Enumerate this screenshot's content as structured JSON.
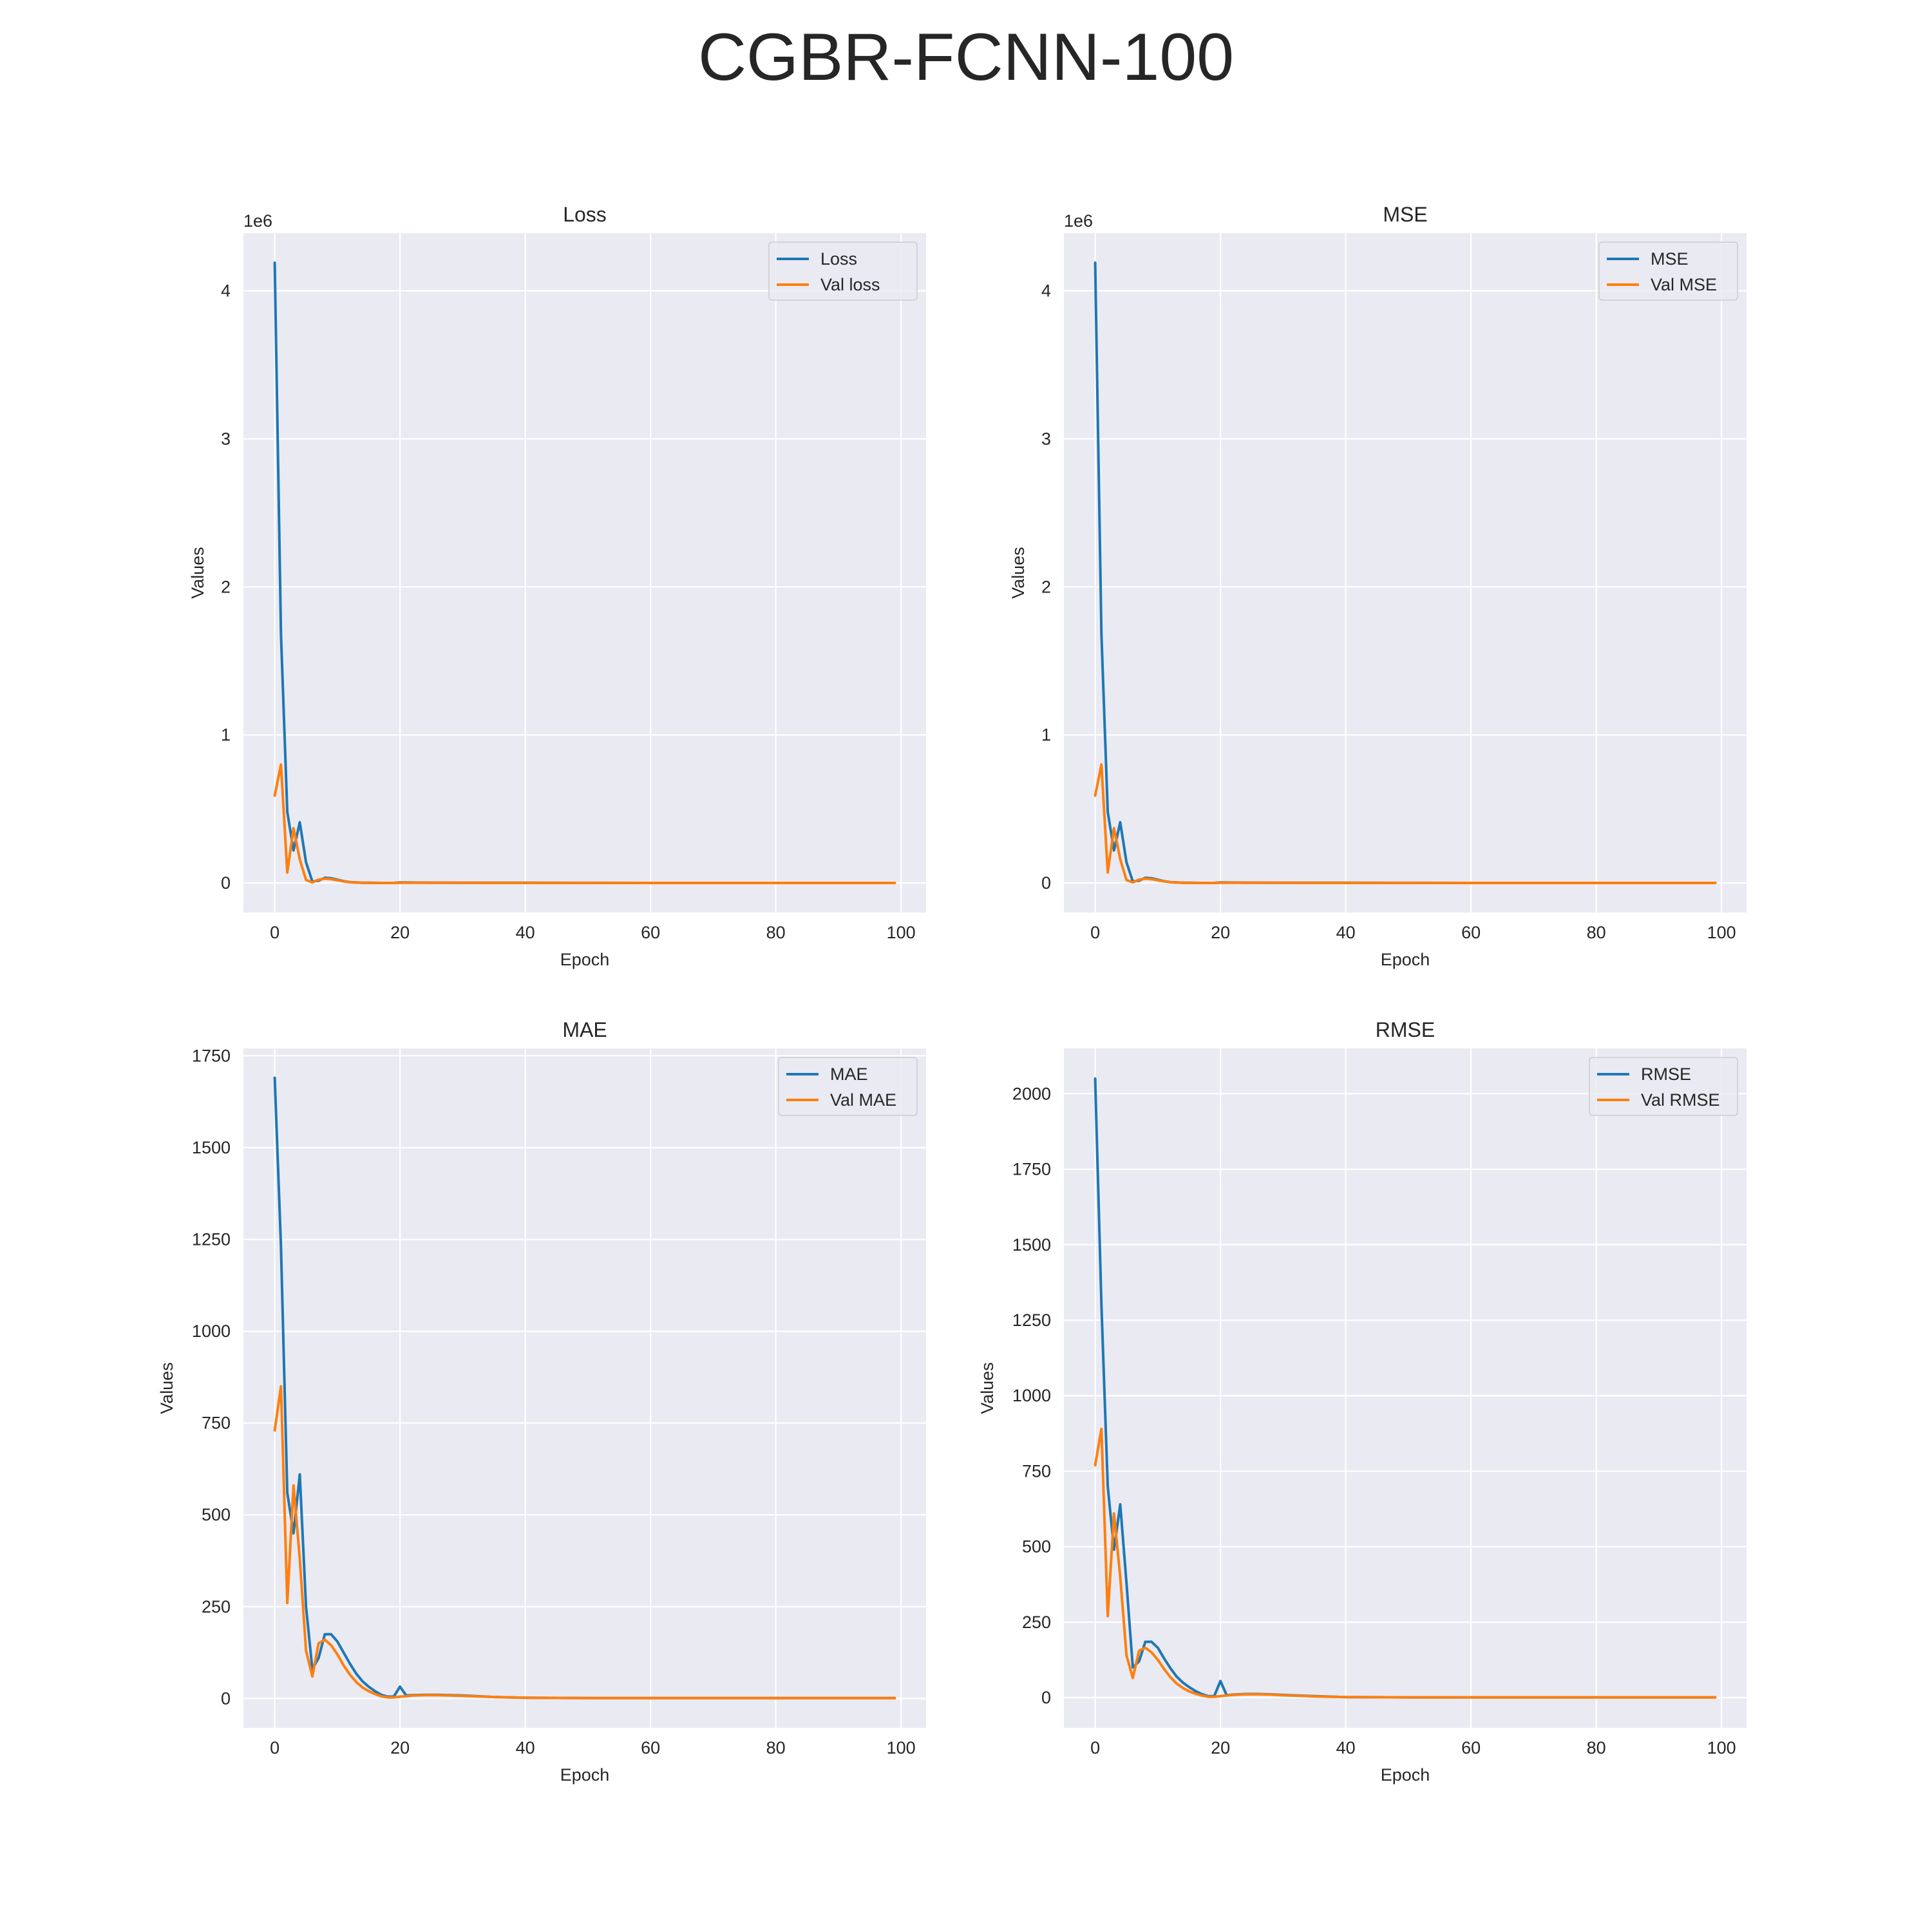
{
  "title": "CGBR-FCNN-100",
  "colors": {
    "train": "#1f77b4",
    "val": "#ff7f0e",
    "background": "#eaeaf2",
    "grid": "#ffffff"
  },
  "chart_data": [
    {
      "type": "line",
      "title": "Loss",
      "xlabel": "Epoch",
      "ylabel": "Values",
      "y_offset_label": "1e6",
      "xlim": [
        -5,
        104
      ],
      "ylim": [
        -200000,
        4390000
      ],
      "xticks": [
        0,
        20,
        40,
        60,
        80,
        100
      ],
      "xtick_labels": [
        "0",
        "20",
        "40",
        "60",
        "80",
        "100"
      ],
      "yticks": [
        0,
        1000000,
        2000000,
        3000000,
        4000000
      ],
      "ytick_labels": [
        "0",
        "1",
        "2",
        "3",
        "4"
      ],
      "legend_position": "top-right",
      "series": [
        {
          "name": "Loss",
          "color": "#1f77b4",
          "x": [
            0,
            1,
            2,
            3,
            4,
            5,
            6,
            7,
            8,
            9,
            10,
            11,
            12,
            13,
            14,
            15,
            16,
            17,
            18,
            19,
            20,
            25,
            30,
            40,
            50,
            60,
            70,
            80,
            90,
            99
          ],
          "y": [
            4190000,
            1680000,
            480000,
            220000,
            410000,
            140000,
            10000,
            15000,
            35000,
            32000,
            22000,
            12000,
            6000,
            3000,
            1500,
            800,
            500,
            300,
            300,
            300,
            3000,
            2000,
            1500,
            800,
            400,
            300,
            200,
            200,
            200,
            200
          ]
        },
        {
          "name": "Val loss",
          "color": "#ff7f0e",
          "x": [
            0,
            1,
            2,
            3,
            4,
            5,
            6,
            7,
            8,
            9,
            10,
            11,
            12,
            13,
            14,
            15,
            16,
            17,
            18,
            19,
            20,
            25,
            30,
            40,
            50,
            60,
            70,
            80,
            90,
            99
          ],
          "y": [
            590000,
            800000,
            70000,
            370000,
            160000,
            20000,
            4000,
            22000,
            29000,
            26000,
            18000,
            10000,
            5000,
            2500,
            1200,
            600,
            400,
            200,
            200,
            200,
            1000,
            1500,
            1200,
            600,
            300,
            200,
            200,
            200,
            200,
            200
          ]
        }
      ]
    },
    {
      "type": "line",
      "title": "MSE",
      "xlabel": "Epoch",
      "ylabel": "Values",
      "y_offset_label": "1e6",
      "xlim": [
        -5,
        104
      ],
      "ylim": [
        -200000,
        4390000
      ],
      "xticks": [
        0,
        20,
        40,
        60,
        80,
        100
      ],
      "xtick_labels": [
        "0",
        "20",
        "40",
        "60",
        "80",
        "100"
      ],
      "yticks": [
        0,
        1000000,
        2000000,
        3000000,
        4000000
      ],
      "ytick_labels": [
        "0",
        "1",
        "2",
        "3",
        "4"
      ],
      "legend_position": "top-right",
      "series": [
        {
          "name": "MSE",
          "color": "#1f77b4",
          "x": [
            0,
            1,
            2,
            3,
            4,
            5,
            6,
            7,
            8,
            9,
            10,
            11,
            12,
            13,
            14,
            15,
            16,
            17,
            18,
            19,
            20,
            25,
            30,
            40,
            50,
            60,
            70,
            80,
            90,
            99
          ],
          "y": [
            4190000,
            1680000,
            480000,
            220000,
            410000,
            140000,
            10000,
            15000,
            35000,
            32000,
            22000,
            12000,
            6000,
            3000,
            1500,
            800,
            500,
            300,
            300,
            300,
            3000,
            2000,
            1500,
            800,
            400,
            300,
            200,
            200,
            200,
            200
          ]
        },
        {
          "name": "Val MSE",
          "color": "#ff7f0e",
          "x": [
            0,
            1,
            2,
            3,
            4,
            5,
            6,
            7,
            8,
            9,
            10,
            11,
            12,
            13,
            14,
            15,
            16,
            17,
            18,
            19,
            20,
            25,
            30,
            40,
            50,
            60,
            70,
            80,
            90,
            99
          ],
          "y": [
            590000,
            800000,
            70000,
            370000,
            160000,
            20000,
            4000,
            22000,
            29000,
            26000,
            18000,
            10000,
            5000,
            2500,
            1200,
            600,
            400,
            200,
            200,
            200,
            1000,
            1500,
            1200,
            600,
            300,
            200,
            200,
            200,
            200,
            200
          ]
        }
      ]
    },
    {
      "type": "line",
      "title": "MAE",
      "xlabel": "Epoch",
      "ylabel": "Values",
      "xlim": [
        -5,
        104
      ],
      "ylim": [
        -80,
        1770
      ],
      "xticks": [
        0,
        20,
        40,
        60,
        80,
        100
      ],
      "xtick_labels": [
        "0",
        "20",
        "40",
        "60",
        "80",
        "100"
      ],
      "yticks": [
        0,
        250,
        500,
        750,
        1000,
        1250,
        1500,
        1750
      ],
      "ytick_labels": [
        "0",
        "250",
        "500",
        "750",
        "1000",
        "1250",
        "1500",
        "1750"
      ],
      "legend_position": "top-right",
      "series": [
        {
          "name": "MAE",
          "color": "#1f77b4",
          "x": [
            0,
            1,
            2,
            3,
            4,
            5,
            6,
            7,
            8,
            9,
            10,
            11,
            12,
            13,
            14,
            15,
            16,
            17,
            18,
            19,
            20,
            21,
            22,
            24,
            26,
            28,
            30,
            35,
            40,
            50,
            60,
            70,
            80,
            90,
            99
          ],
          "y": [
            1690,
            1230,
            560,
            450,
            610,
            250,
            80,
            110,
            175,
            175,
            155,
            125,
            95,
            68,
            47,
            32,
            20,
            10,
            5,
            5,
            32,
            8,
            9,
            10,
            10,
            9,
            8,
            4,
            2,
            1,
            1,
            1,
            1,
            1,
            1
          ]
        },
        {
          "name": "Val MAE",
          "color": "#ff7f0e",
          "x": [
            0,
            1,
            2,
            3,
            4,
            5,
            6,
            7,
            8,
            9,
            10,
            11,
            12,
            13,
            14,
            15,
            16,
            17,
            18,
            19,
            20,
            21,
            22,
            24,
            26,
            28,
            30,
            35,
            40,
            50,
            60,
            70,
            80,
            90,
            99
          ],
          "y": [
            730,
            850,
            260,
            580,
            380,
            130,
            60,
            150,
            160,
            145,
            120,
            90,
            65,
            45,
            30,
            20,
            12,
            6,
            3,
            3,
            5,
            6,
            8,
            9,
            9,
            8,
            7,
            4,
            2,
            1,
            1,
            1,
            1,
            1,
            1
          ]
        }
      ]
    },
    {
      "type": "line",
      "title": "RMSE",
      "xlabel": "Epoch",
      "ylabel": "Values",
      "xlim": [
        -5,
        104
      ],
      "ylim": [
        -100,
        2150
      ],
      "xticks": [
        0,
        20,
        40,
        60,
        80,
        100
      ],
      "xtick_labels": [
        "0",
        "20",
        "40",
        "60",
        "80",
        "100"
      ],
      "yticks": [
        0,
        250,
        500,
        750,
        1000,
        1250,
        1500,
        1750,
        2000
      ],
      "ytick_labels": [
        "0",
        "250",
        "500",
        "750",
        "1000",
        "1250",
        "1500",
        "1750",
        "2000"
      ],
      "legend_position": "top-right",
      "series": [
        {
          "name": "RMSE",
          "color": "#1f77b4",
          "x": [
            0,
            1,
            2,
            3,
            4,
            5,
            6,
            7,
            8,
            9,
            10,
            11,
            12,
            13,
            14,
            15,
            16,
            17,
            18,
            19,
            20,
            21,
            22,
            24,
            26,
            28,
            30,
            35,
            40,
            50,
            60,
            70,
            80,
            90,
            99
          ],
          "y": [
            2050,
            1300,
            700,
            490,
            640,
            380,
            100,
            120,
            185,
            185,
            165,
            130,
            98,
            70,
            50,
            35,
            22,
            12,
            5,
            5,
            55,
            8,
            10,
            12,
            12,
            11,
            9,
            5,
            2,
            1,
            1,
            1,
            1,
            1,
            1
          ]
        },
        {
          "name": "Val RMSE",
          "color": "#ff7f0e",
          "x": [
            0,
            1,
            2,
            3,
            4,
            5,
            6,
            7,
            8,
            9,
            10,
            11,
            12,
            13,
            14,
            15,
            16,
            17,
            18,
            19,
            20,
            21,
            22,
            24,
            26,
            28,
            30,
            35,
            40,
            50,
            60,
            70,
            80,
            90,
            99
          ],
          "y": [
            770,
            890,
            270,
            610,
            400,
            140,
            65,
            155,
            165,
            150,
            125,
            95,
            68,
            47,
            32,
            21,
            13,
            7,
            3,
            3,
            5,
            7,
            9,
            11,
            11,
            10,
            8,
            4,
            2,
            1,
            1,
            1,
            1,
            1,
            1
          ]
        }
      ]
    }
  ]
}
